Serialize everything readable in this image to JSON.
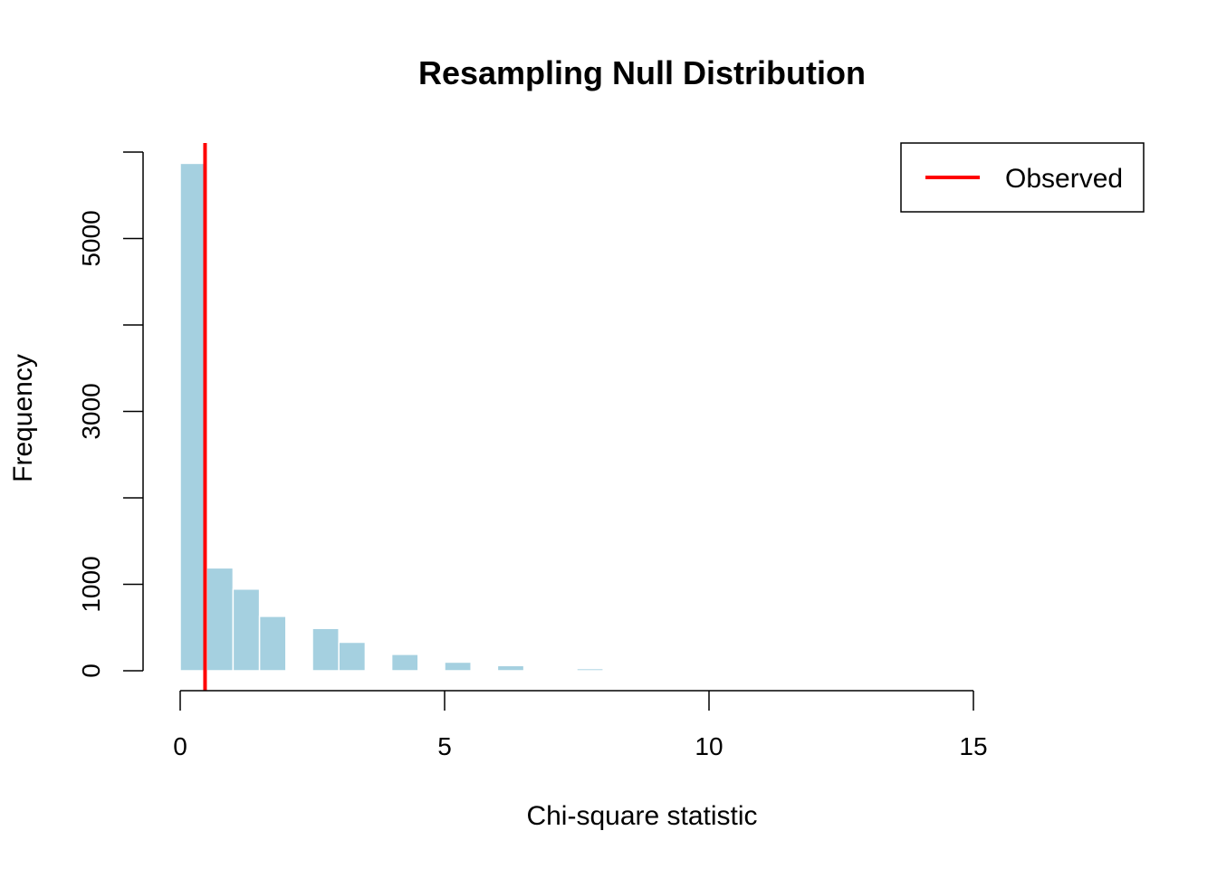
{
  "chart_data": {
    "type": "bar",
    "title": "Resampling Null Distribution",
    "xlabel": "Chi-square statistic",
    "ylabel": "Frequency",
    "xlim": [
      0,
      15
    ],
    "ylim": [
      0,
      6000
    ],
    "x_ticks": [
      "0",
      "5",
      "10",
      "15"
    ],
    "y_ticks": [
      "0",
      "1000",
      "3000",
      "5000"
    ],
    "bar_color": "#A5D0E0",
    "bin_width": 0.5,
    "bins": [
      {
        "x0": 0.0,
        "x1": 0.5,
        "count": 5870
      },
      {
        "x0": 0.5,
        "x1": 1.0,
        "count": 1190
      },
      {
        "x0": 1.0,
        "x1": 1.5,
        "count": 945
      },
      {
        "x0": 1.5,
        "x1": 2.0,
        "count": 630
      },
      {
        "x0": 2.0,
        "x1": 2.5,
        "count": 0
      },
      {
        "x0": 2.5,
        "x1": 3.0,
        "count": 490
      },
      {
        "x0": 3.0,
        "x1": 3.5,
        "count": 330
      },
      {
        "x0": 3.5,
        "x1": 4.0,
        "count": 0
      },
      {
        "x0": 4.0,
        "x1": 4.5,
        "count": 190
      },
      {
        "x0": 4.5,
        "x1": 5.0,
        "count": 0
      },
      {
        "x0": 5.0,
        "x1": 5.5,
        "count": 100
      },
      {
        "x0": 5.5,
        "x1": 6.0,
        "count": 0
      },
      {
        "x0": 6.0,
        "x1": 6.5,
        "count": 60
      },
      {
        "x0": 6.5,
        "x1": 7.0,
        "count": 0
      },
      {
        "x0": 7.0,
        "x1": 7.5,
        "count": 0
      },
      {
        "x0": 7.5,
        "x1": 8.0,
        "count": 25
      }
    ],
    "observed_line": {
      "x": 0.47,
      "color": "#FF0000"
    },
    "legend": {
      "label": "Observed",
      "placement": "top-right"
    },
    "grid": false
  }
}
